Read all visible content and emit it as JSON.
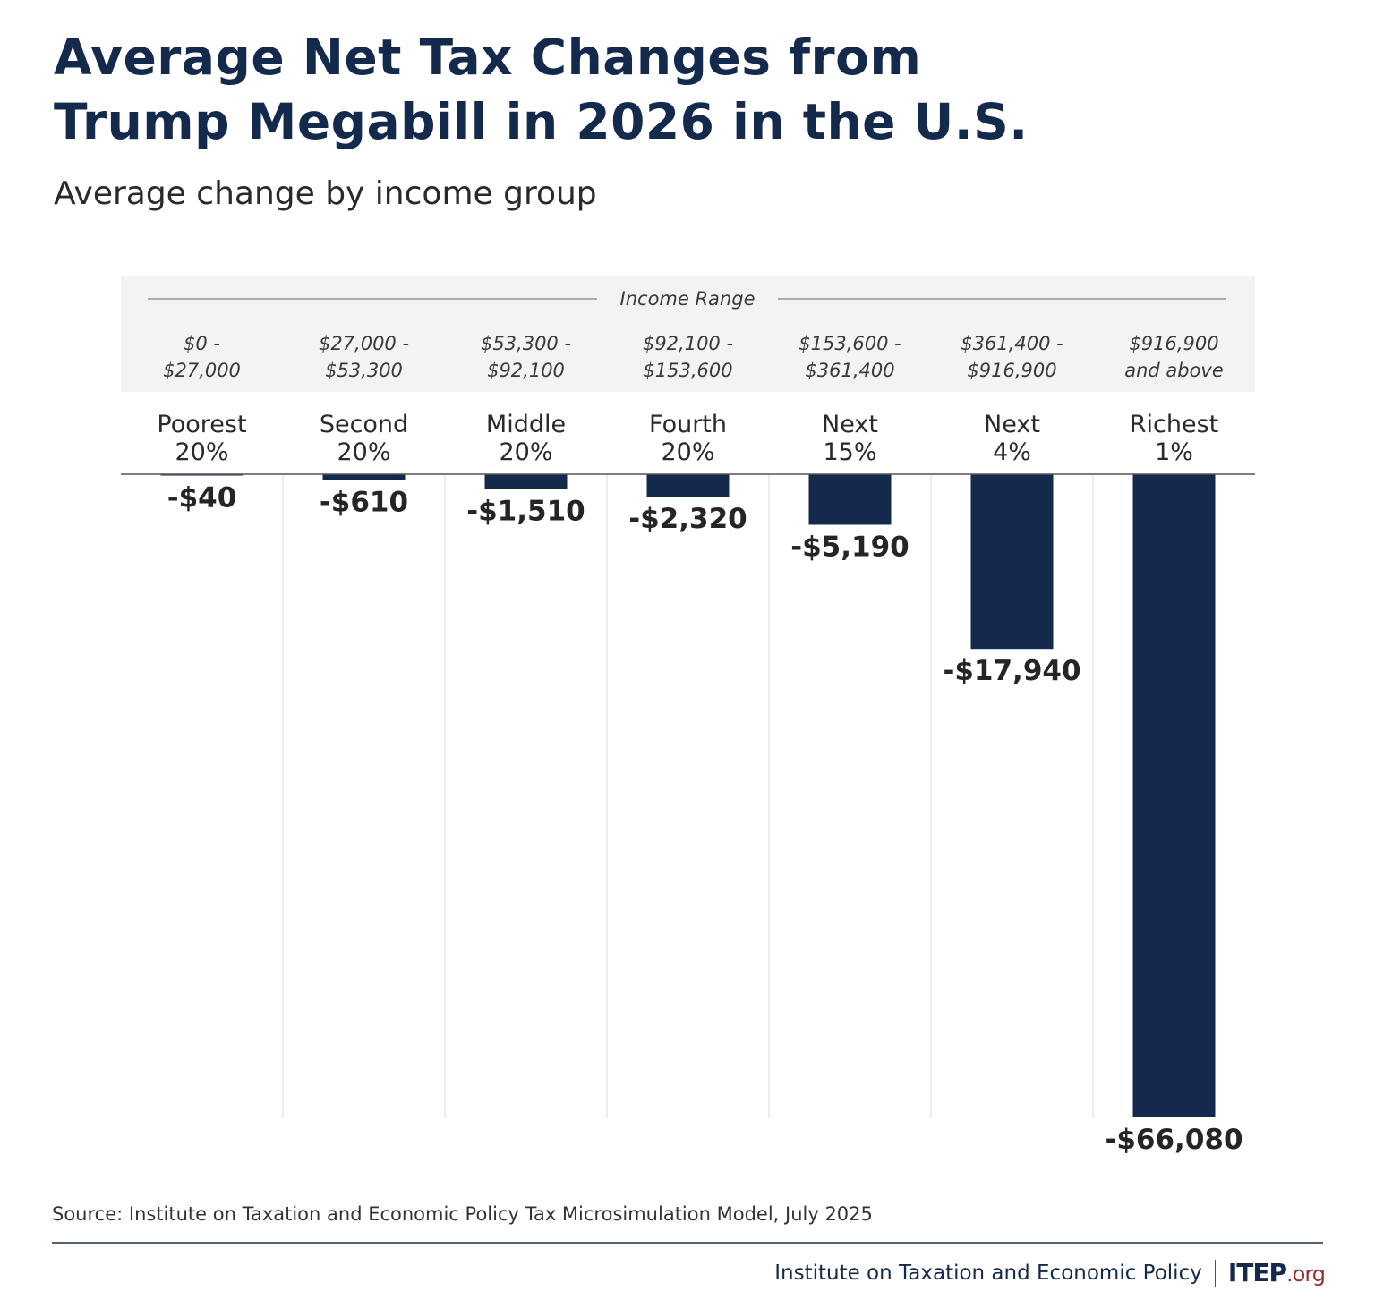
{
  "header": {
    "title_line1": "Average Net Tax Changes from",
    "title_line2": "Trump Megabill in 2026 in the U.S.",
    "subtitle": "Average change by income group"
  },
  "chart_data": {
    "type": "bar",
    "orientation": "vertical-downward",
    "title": "Average Net Tax Changes from Trump Megabill in 2026 in the U.S.",
    "subtitle": "Average change by income group",
    "range_header": "Income Range",
    "categories": [
      {
        "group_line1": "Poorest",
        "group_line2": "20%",
        "range_line1": "$0 -",
        "range_line2": "$27,000"
      },
      {
        "group_line1": "Second",
        "group_line2": "20%",
        "range_line1": "$27,000 -",
        "range_line2": "$53,300"
      },
      {
        "group_line1": "Middle",
        "group_line2": "20%",
        "range_line1": "$53,300 -",
        "range_line2": "$92,100"
      },
      {
        "group_line1": "Fourth",
        "group_line2": "20%",
        "range_line1": "$92,100 -",
        "range_line2": "$153,600"
      },
      {
        "group_line1": "Next",
        "group_line2": "15%",
        "range_line1": "$153,600 -",
        "range_line2": "$361,400"
      },
      {
        "group_line1": "Next",
        "group_line2": "4%",
        "range_line1": "$361,400 -",
        "range_line2": "$916,900"
      },
      {
        "group_line1": "Richest",
        "group_line2": "1%",
        "range_line1": "$916,900",
        "range_line2": "and above"
      }
    ],
    "values": [
      -40,
      -610,
      -1510,
      -2320,
      -5190,
      -17940,
      -66080
    ],
    "value_labels": [
      "-$40",
      "-$610",
      "-$1,510",
      "-$2,320",
      "-$5,190",
      "-$17,940",
      "-$66,080"
    ],
    "ylim": [
      -66080,
      0
    ],
    "xlabel": "",
    "ylabel": "",
    "grid": true,
    "legend": "none",
    "colors": {
      "bar": "#142a4d",
      "range_band": "#f3f3f3",
      "axis": "#555555",
      "grid": "#e6e6e6"
    }
  },
  "footer": {
    "source": "Source: Institute on Taxation and Economic Policy Tax Microsimulation Model, July 2025",
    "org_name": "Institute on Taxation and Economic Policy",
    "logo_main": "ITEP",
    "logo_suffix": ".org",
    "colors": {
      "brand_navy": "#142a4d",
      "brand_red": "#9b2c30"
    }
  }
}
